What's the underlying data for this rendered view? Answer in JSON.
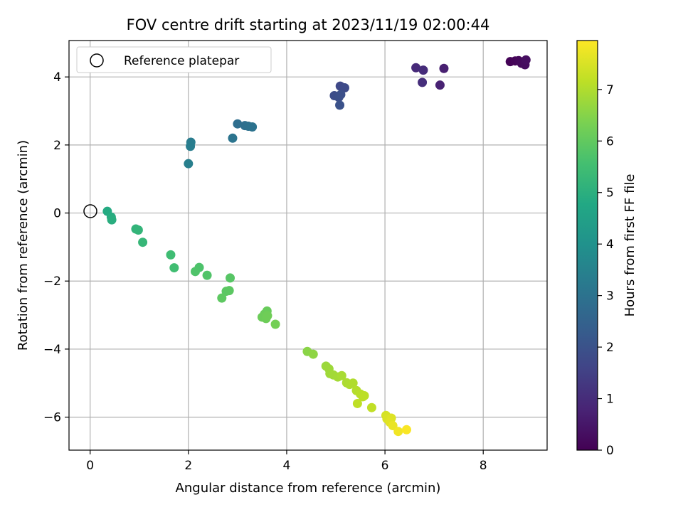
{
  "chart_data": {
    "type": "scatter",
    "title": "FOV centre drift starting at 2023/11/19 02:00:44",
    "xlabel": "Angular distance from reference (arcmin)",
    "ylabel": "Rotation from reference (arcmin)",
    "xlim": [
      -0.43,
      9.3
    ],
    "ylim": [
      -6.97,
      5.07
    ],
    "xticks": [
      0,
      2,
      4,
      6,
      8
    ],
    "yticks": [
      -6,
      -4,
      -2,
      0,
      2,
      4
    ],
    "grid": true,
    "legend": {
      "position": "top-left",
      "entries": [
        "Reference platepar"
      ]
    },
    "reference_point": {
      "x": 0,
      "y": 0
    },
    "colorbar": {
      "label": "Hours from first FF file",
      "colormap": "viridis",
      "range": [
        0,
        7.95
      ],
      "ticks": [
        0,
        1,
        2,
        3,
        4,
        5,
        6,
        7
      ]
    },
    "points": [
      {
        "x": 8.55,
        "y": 4.45,
        "t": 0.05
      },
      {
        "x": 8.65,
        "y": 4.47,
        "t": 0.1
      },
      {
        "x": 8.72,
        "y": 4.48,
        "t": 0.15
      },
      {
        "x": 8.78,
        "y": 4.4,
        "t": 0.2
      },
      {
        "x": 8.85,
        "y": 4.36,
        "t": 0.25
      },
      {
        "x": 8.87,
        "y": 4.5,
        "t": 0.3
      },
      {
        "x": 7.2,
        "y": 4.25,
        "t": 0.7
      },
      {
        "x": 7.12,
        "y": 3.76,
        "t": 0.75
      },
      {
        "x": 6.63,
        "y": 4.27,
        "t": 0.95
      },
      {
        "x": 6.78,
        "y": 4.2,
        "t": 1.0
      },
      {
        "x": 6.76,
        "y": 3.84,
        "t": 1.05
      },
      {
        "x": 5.09,
        "y": 3.73,
        "t": 1.75
      },
      {
        "x": 5.18,
        "y": 3.68,
        "t": 1.8
      },
      {
        "x": 4.97,
        "y": 3.45,
        "t": 1.85
      },
      {
        "x": 5.06,
        "y": 3.4,
        "t": 1.9
      },
      {
        "x": 5.1,
        "y": 3.48,
        "t": 1.95
      },
      {
        "x": 5.08,
        "y": 3.17,
        "t": 2.0
      },
      {
        "x": 3.0,
        "y": 2.62,
        "t": 2.85
      },
      {
        "x": 3.15,
        "y": 2.57,
        "t": 2.9
      },
      {
        "x": 3.22,
        "y": 2.55,
        "t": 2.95
      },
      {
        "x": 3.3,
        "y": 2.53,
        "t": 3.0
      },
      {
        "x": 2.9,
        "y": 2.2,
        "t": 3.05
      },
      {
        "x": 2.05,
        "y": 2.08,
        "t": 3.3
      },
      {
        "x": 2.04,
        "y": 1.96,
        "t": 3.35
      },
      {
        "x": 2.0,
        "y": 1.45,
        "t": 3.4
      },
      {
        "x": 0.35,
        "y": 0.05,
        "t": 4.85
      },
      {
        "x": 0.43,
        "y": -0.12,
        "t": 4.9
      },
      {
        "x": 0.44,
        "y": -0.2,
        "t": 4.95
      },
      {
        "x": 0.93,
        "y": -0.47,
        "t": 5.15
      },
      {
        "x": 0.98,
        "y": -0.5,
        "t": 5.2
      },
      {
        "x": 1.07,
        "y": -0.86,
        "t": 5.25
      },
      {
        "x": 1.64,
        "y": -1.23,
        "t": 5.45
      },
      {
        "x": 1.71,
        "y": -1.61,
        "t": 5.5
      },
      {
        "x": 2.22,
        "y": -1.6,
        "t": 5.7
      },
      {
        "x": 2.14,
        "y": -1.72,
        "t": 5.72
      },
      {
        "x": 2.38,
        "y": -1.83,
        "t": 5.75
      },
      {
        "x": 2.85,
        "y": -1.91,
        "t": 5.85
      },
      {
        "x": 2.77,
        "y": -2.3,
        "t": 5.9
      },
      {
        "x": 2.83,
        "y": -2.28,
        "t": 5.92
      },
      {
        "x": 2.68,
        "y": -2.5,
        "t": 5.95
      },
      {
        "x": 3.6,
        "y": -2.88,
        "t": 6.1
      },
      {
        "x": 3.55,
        "y": -2.97,
        "t": 6.12
      },
      {
        "x": 3.5,
        "y": -3.06,
        "t": 6.15
      },
      {
        "x": 3.58,
        "y": -3.1,
        "t": 6.17
      },
      {
        "x": 3.61,
        "y": -3.02,
        "t": 6.2
      },
      {
        "x": 3.77,
        "y": -3.27,
        "t": 6.25
      },
      {
        "x": 4.42,
        "y": -4.07,
        "t": 6.55
      },
      {
        "x": 4.54,
        "y": -4.15,
        "t": 6.6
      },
      {
        "x": 4.8,
        "y": -4.5,
        "t": 6.75
      },
      {
        "x": 4.86,
        "y": -4.58,
        "t": 6.78
      },
      {
        "x": 4.88,
        "y": -4.72,
        "t": 6.8
      },
      {
        "x": 4.95,
        "y": -4.76,
        "t": 6.83
      },
      {
        "x": 5.04,
        "y": -4.82,
        "t": 6.86
      },
      {
        "x": 5.12,
        "y": -4.78,
        "t": 6.9
      },
      {
        "x": 5.22,
        "y": -4.99,
        "t": 6.95
      },
      {
        "x": 5.28,
        "y": -5.04,
        "t": 6.97
      },
      {
        "x": 5.35,
        "y": -5.0,
        "t": 7.0
      },
      {
        "x": 5.42,
        "y": -5.22,
        "t": 7.05
      },
      {
        "x": 5.5,
        "y": -5.32,
        "t": 7.1
      },
      {
        "x": 5.55,
        "y": -5.4,
        "t": 7.12
      },
      {
        "x": 5.58,
        "y": -5.37,
        "t": 7.14
      },
      {
        "x": 5.44,
        "y": -5.6,
        "t": 7.17
      },
      {
        "x": 5.73,
        "y": -5.72,
        "t": 7.2
      },
      {
        "x": 6.02,
        "y": -5.95,
        "t": 7.45
      },
      {
        "x": 6.04,
        "y": -6.05,
        "t": 7.5
      },
      {
        "x": 6.13,
        "y": -6.03,
        "t": 7.55
      },
      {
        "x": 6.1,
        "y": -6.15,
        "t": 7.6
      },
      {
        "x": 6.16,
        "y": -6.25,
        "t": 7.7
      },
      {
        "x": 6.27,
        "y": -6.42,
        "t": 7.8
      },
      {
        "x": 6.44,
        "y": -6.37,
        "t": 7.9
      }
    ]
  }
}
